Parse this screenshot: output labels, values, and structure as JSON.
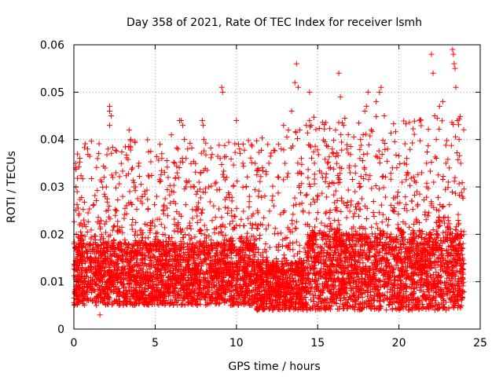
{
  "chart_data": {
    "type": "scatter",
    "title": "Day 358 of 2021, Rate Of TEC Index for receiver lsmh",
    "xlabel": "GPS time / hours",
    "ylabel": "ROTI / TECUs",
    "xlim": [
      0,
      25
    ],
    "ylim": [
      0,
      0.06
    ],
    "x_ticks": [
      0,
      5,
      10,
      15,
      20,
      25
    ],
    "x_tick_labels": [
      "0",
      "5",
      "10",
      "15",
      "20",
      "25"
    ],
    "y_ticks": [
      0,
      0.01,
      0.02,
      0.03,
      0.04,
      0.05,
      0.06
    ],
    "y_tick_labels": [
      "0",
      "0.01",
      "0.02",
      "0.03",
      "0.04",
      "0.05",
      "0.06"
    ],
    "grid": true,
    "marker": "+",
    "color": "#ff0000",
    "series": [
      {
        "name": "ROTI",
        "points": [
          [
            0.1,
            0.034
          ],
          [
            0.2,
            0.029
          ],
          [
            0.15,
            0.02
          ],
          [
            0.3,
            0.018
          ],
          [
            0.5,
            0.012
          ],
          [
            0.8,
            0.009
          ],
          [
            1.0,
            0.015
          ],
          [
            1.3,
            0.008
          ],
          [
            1.6,
            0.003
          ],
          [
            1.8,
            0.011
          ],
          [
            2.0,
            0.03
          ],
          [
            2.1,
            0.038
          ],
          [
            2.2,
            0.047
          ],
          [
            2.2,
            0.046
          ],
          [
            2.3,
            0.045
          ],
          [
            2.2,
            0.043
          ],
          [
            2.4,
            0.032
          ],
          [
            2.6,
            0.025
          ],
          [
            2.8,
            0.021
          ],
          [
            3.0,
            0.028
          ],
          [
            3.4,
            0.042
          ],
          [
            3.5,
            0.04
          ],
          [
            3.6,
            0.034
          ],
          [
            3.7,
            0.03
          ],
          [
            3.8,
            0.03
          ],
          [
            4.0,
            0.035
          ],
          [
            4.2,
            0.028
          ],
          [
            4.5,
            0.022
          ],
          [
            4.8,
            0.018
          ],
          [
            5.1,
            0.028
          ],
          [
            5.3,
            0.039
          ],
          [
            5.5,
            0.025
          ],
          [
            5.8,
            0.032
          ],
          [
            6.0,
            0.041
          ],
          [
            6.2,
            0.035
          ],
          [
            6.4,
            0.038
          ],
          [
            6.5,
            0.044
          ],
          [
            6.6,
            0.044
          ],
          [
            6.7,
            0.043
          ],
          [
            6.8,
            0.04
          ],
          [
            6.9,
            0.036
          ],
          [
            7.0,
            0.038
          ],
          [
            7.2,
            0.03
          ],
          [
            7.5,
            0.025
          ],
          [
            7.7,
            0.031
          ],
          [
            7.9,
            0.044
          ],
          [
            7.95,
            0.043
          ],
          [
            8.0,
            0.04
          ],
          [
            8.3,
            0.03
          ],
          [
            8.6,
            0.026
          ],
          [
            9.0,
            0.036
          ],
          [
            9.1,
            0.051
          ],
          [
            9.15,
            0.05
          ],
          [
            9.4,
            0.032
          ],
          [
            9.7,
            0.025
          ],
          [
            10.0,
            0.044
          ],
          [
            10.2,
            0.038
          ],
          [
            10.4,
            0.035
          ],
          [
            10.6,
            0.03
          ],
          [
            10.8,
            0.028
          ],
          [
            11.0,
            0.022
          ],
          [
            11.3,
            0.025
          ],
          [
            11.6,
            0.022
          ],
          [
            11.8,
            0.018
          ],
          [
            12.0,
            0.035
          ],
          [
            12.3,
            0.026
          ],
          [
            12.6,
            0.032
          ],
          [
            12.9,
            0.043
          ],
          [
            13.2,
            0.042
          ],
          [
            13.4,
            0.046
          ],
          [
            13.6,
            0.052
          ],
          [
            13.7,
            0.056
          ],
          [
            13.8,
            0.051
          ],
          [
            13.9,
            0.042
          ],
          [
            14.0,
            0.036
          ],
          [
            14.1,
            0.025
          ],
          [
            14.3,
            0.043
          ],
          [
            14.5,
            0.05
          ],
          [
            14.6,
            0.043
          ],
          [
            14.8,
            0.035
          ],
          [
            15.0,
            0.028
          ],
          [
            15.3,
            0.032
          ],
          [
            15.6,
            0.035
          ],
          [
            15.9,
            0.038
          ],
          [
            16.1,
            0.042
          ],
          [
            16.3,
            0.054
          ],
          [
            16.4,
            0.049
          ],
          [
            16.6,
            0.043
          ],
          [
            16.8,
            0.038
          ],
          [
            17.0,
            0.033
          ],
          [
            17.3,
            0.029
          ],
          [
            17.6,
            0.036
          ],
          [
            17.8,
            0.041
          ],
          [
            17.9,
            0.046
          ],
          [
            18.0,
            0.047
          ],
          [
            18.1,
            0.05
          ],
          [
            18.3,
            0.042
          ],
          [
            18.6,
            0.048
          ],
          [
            18.8,
            0.05
          ],
          [
            18.9,
            0.051
          ],
          [
            19.1,
            0.045
          ],
          [
            19.3,
            0.038
          ],
          [
            19.6,
            0.034
          ],
          [
            19.9,
            0.028
          ],
          [
            20.2,
            0.031
          ],
          [
            20.5,
            0.025
          ],
          [
            20.8,
            0.027
          ],
          [
            21.1,
            0.029
          ],
          [
            21.4,
            0.033
          ],
          [
            21.7,
            0.035
          ],
          [
            22.0,
            0.058
          ],
          [
            22.1,
            0.054
          ],
          [
            22.2,
            0.045
          ],
          [
            22.3,
            0.04
          ],
          [
            22.5,
            0.047
          ],
          [
            22.7,
            0.048
          ],
          [
            22.9,
            0.035
          ],
          [
            23.1,
            0.034
          ],
          [
            23.3,
            0.059
          ],
          [
            23.35,
            0.058
          ],
          [
            23.4,
            0.056
          ],
          [
            23.45,
            0.055
          ],
          [
            23.5,
            0.051
          ],
          [
            23.6,
            0.044
          ],
          [
            23.7,
            0.04
          ],
          [
            23.8,
            0.035
          ],
          [
            23.9,
            0.028
          ]
        ],
        "band": {
          "description": "dense baseline scatter of ROTI values",
          "segments": [
            {
              "x_range": [
                0,
                11.2
              ],
              "y_base": [
                0.005,
                0.018
              ],
              "y_spread_max": 0.04
            },
            {
              "x_range": [
                11.2,
                14.3
              ],
              "y_base": [
                0.004,
                0.014
              ],
              "y_spread_max": 0.042
            },
            {
              "x_range": [
                14.3,
                24
              ],
              "y_base": [
                0.004,
                0.02
              ],
              "y_spread_max": 0.045
            }
          ]
        }
      }
    ]
  }
}
